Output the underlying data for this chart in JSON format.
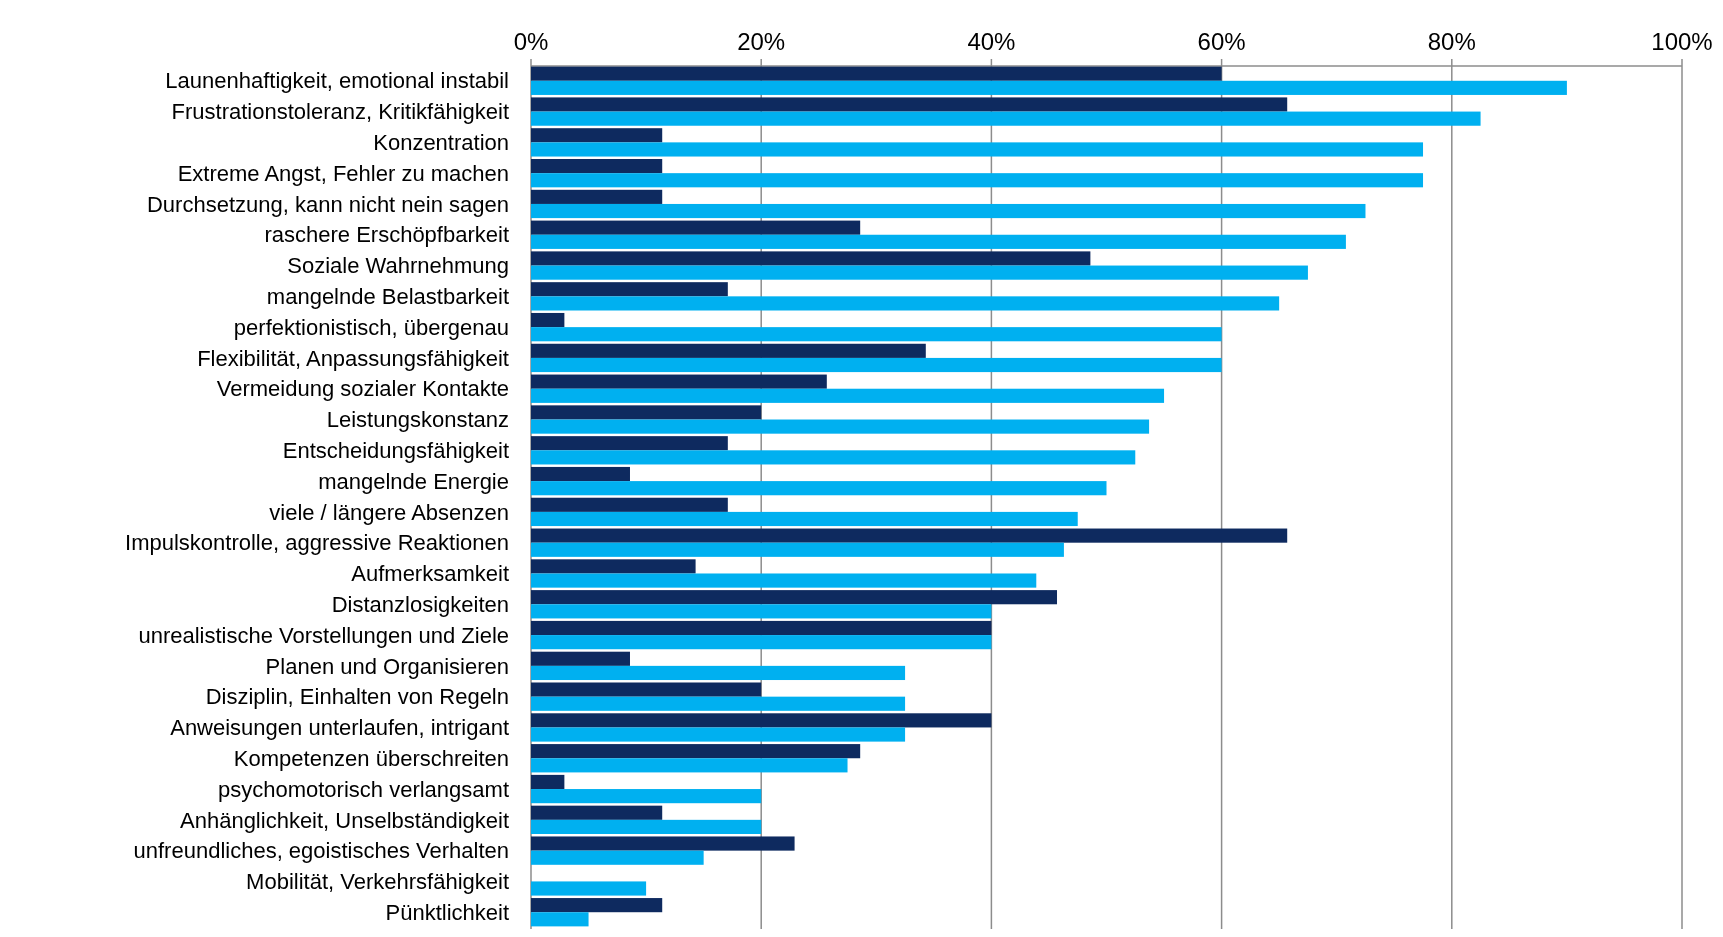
{
  "chart_data": {
    "type": "bar",
    "orientation": "horizontal",
    "categories": [
      "Launenhaftigkeit, emotional instabil",
      "Frustrationstoleranz, Kritikfähigkeit",
      "Konzentration",
      "Extreme Angst, Fehler zu machen",
      "Durchsetzung, kann nicht nein sagen",
      "raschere Erschöpfbarkeit",
      "Soziale Wahrnehmung",
      "mangelnde Belastbarkeit",
      "perfektionistisch, übergenau",
      "Flexibilität, Anpassungsfähigkeit",
      "Vermeidung sozialer Kontakte",
      "Leistungskonstanz",
      "Entscheidungsfähigkeit",
      "mangelnde Energie",
      "viele / längere Absenzen",
      "Impulskontrolle, aggressive Reaktionen",
      "Aufmerksamkeit",
      "Distanzlosigkeiten",
      "unrealistische Vorstellungen und Ziele",
      "Planen und Organisieren ",
      "Disziplin, Einhalten von Regeln",
      "Anweisungen unterlaufen, intrigant",
      "Kompetenzen überschreiten",
      "psychomotorisch verlangsamt",
      "Anhänglichkeit, Unselbständigkeit",
      "unfreundliches, egoistisches Verhalten",
      "Mobilität, Verkehrsfähigkeit",
      "Pünktlichkeit"
    ],
    "series": [
      {
        "color": "#0e2a5f",
        "values": [
          60,
          65.7,
          11.4,
          11.4,
          11.4,
          28.6,
          48.6,
          17.1,
          2.9,
          34.3,
          25.7,
          20,
          17.1,
          8.6,
          17.1,
          65.7,
          14.3,
          45.7,
          40,
          8.6,
          20,
          40,
          28.6,
          2.9,
          11.4,
          22.9,
          0,
          11.4
        ]
      },
      {
        "color": "#00b0f0",
        "values": [
          90,
          82.5,
          77.5,
          77.5,
          72.5,
          70.8,
          67.5,
          65,
          60,
          60,
          55,
          53.7,
          52.5,
          50,
          47.5,
          46.3,
          43.9,
          40,
          40,
          32.5,
          32.5,
          32.5,
          27.5,
          20,
          20,
          15,
          10,
          5
        ]
      }
    ],
    "xlim": [
      0,
      100
    ],
    "xticks": [
      {
        "value": 0,
        "label": "0%"
      },
      {
        "value": 20,
        "label": "20%"
      },
      {
        "value": 40,
        "label": "40%"
      },
      {
        "value": 60,
        "label": "60%"
      },
      {
        "value": 80,
        "label": "80%"
      },
      {
        "value": 100,
        "label": "100%"
      }
    ],
    "grid": "x"
  }
}
